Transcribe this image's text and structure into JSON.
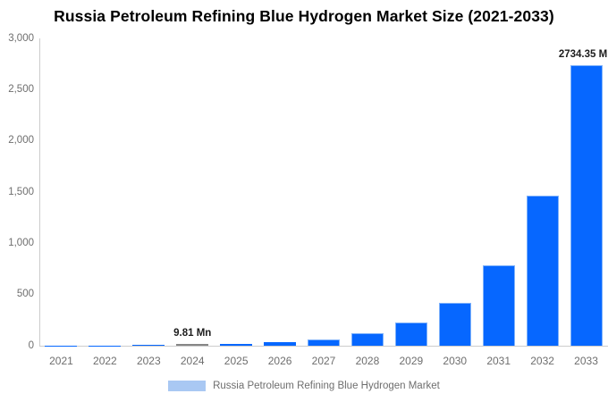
{
  "title": "Russia Petroleum Refining Blue Hydrogen Market Size (2021-2033)",
  "legend": {
    "label": "Russia Petroleum Refining Blue Hydrogen Market",
    "swatch_color": "#a9c8f3"
  },
  "colors": {
    "bar": "#0667ff",
    "bar_border": "#7fb2fa",
    "highlight_bar": "#868686",
    "axis": "#cccccc",
    "tick_text": "#6e6e6e",
    "annotation_text": "#1c1c1c"
  },
  "chart_data": {
    "type": "bar",
    "title": "Russia Petroleum Refining Blue Hydrogen Market Size (2021-2033)",
    "xlabel": "",
    "ylabel": "",
    "unit": "Mn",
    "categories": [
      "2021",
      "2022",
      "2023",
      "2024",
      "2025",
      "2026",
      "2027",
      "2028",
      "2029",
      "2030",
      "2031",
      "2032",
      "2033"
    ],
    "values": [
      1.5,
      2.81,
      5.25,
      9.81,
      18.34,
      34.28,
      64.08,
      119.79,
      223.93,
      418.59,
      782.49,
      1462.78,
      2734.35
    ],
    "ylim": [
      0,
      3000
    ],
    "y_ticks": [
      {
        "value": 0,
        "label": "0"
      },
      {
        "value": 500,
        "label": "500"
      },
      {
        "value": 1000,
        "label": "1,000"
      },
      {
        "value": 1500,
        "label": "1,500"
      },
      {
        "value": 2000,
        "label": "2,000"
      },
      {
        "value": 2500,
        "label": "2,500"
      },
      {
        "value": 3000,
        "label": "3,000"
      }
    ],
    "grid": false,
    "legend_position": "bottom",
    "highlight_category": "2024",
    "annotations": [
      {
        "category": "2024",
        "text": "9.81 Mn"
      },
      {
        "category": "2033",
        "text": "2734.35 Mn"
      }
    ]
  }
}
